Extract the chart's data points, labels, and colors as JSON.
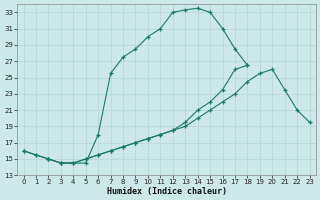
{
  "xlabel": "Humidex (Indice chaleur)",
  "bg_color": "#cde8e8",
  "grid_color": "#b8d8d8",
  "line_color": "#1a7a6a",
  "xlim": [
    -0.5,
    23.5
  ],
  "ylim": [
    13,
    34
  ],
  "yticks": [
    13,
    15,
    17,
    19,
    21,
    23,
    25,
    27,
    29,
    31,
    33
  ],
  "xticks": [
    0,
    1,
    2,
    3,
    4,
    5,
    6,
    7,
    8,
    9,
    10,
    11,
    12,
    13,
    14,
    15,
    16,
    17,
    18,
    19,
    20,
    21,
    22,
    23
  ],
  "line_peak_x": [
    0,
    1,
    2,
    3,
    4,
    5,
    6,
    7,
    8,
    9,
    10,
    11,
    12,
    13,
    14,
    15,
    16,
    17,
    18
  ],
  "line_peak_y": [
    16,
    15.5,
    15,
    14.5,
    14.5,
    14.5,
    18,
    25.5,
    27.5,
    28.5,
    30,
    31,
    33,
    33.3,
    33.5,
    33,
    31,
    28.5,
    26.5
  ],
  "line_long_x": [
    0,
    1,
    2,
    3,
    4,
    5,
    6,
    7,
    8,
    9,
    10,
    11,
    12,
    13,
    14,
    15,
    16,
    17,
    18,
    19,
    20,
    21,
    22,
    23
  ],
  "line_long_y": [
    16,
    15.5,
    15,
    14.5,
    14.5,
    15,
    15.5,
    16,
    16.5,
    17,
    17.5,
    18,
    18.5,
    19,
    20,
    21,
    22,
    23,
    24.5,
    25.5,
    26,
    23.5,
    21,
    19.5
  ],
  "line_mid_x": [
    2,
    3,
    4,
    5,
    6,
    7,
    8,
    9,
    10,
    11,
    12,
    13,
    14,
    15,
    16,
    17,
    18,
    19,
    20,
    21,
    22,
    23
  ],
  "line_mid_y": [
    15,
    14.5,
    14.5,
    15,
    15.5,
    16,
    16.5,
    17,
    17.5,
    18,
    18.5,
    19.5,
    21,
    22,
    23.5,
    26,
    26.5,
    null,
    null,
    null,
    null,
    null
  ]
}
